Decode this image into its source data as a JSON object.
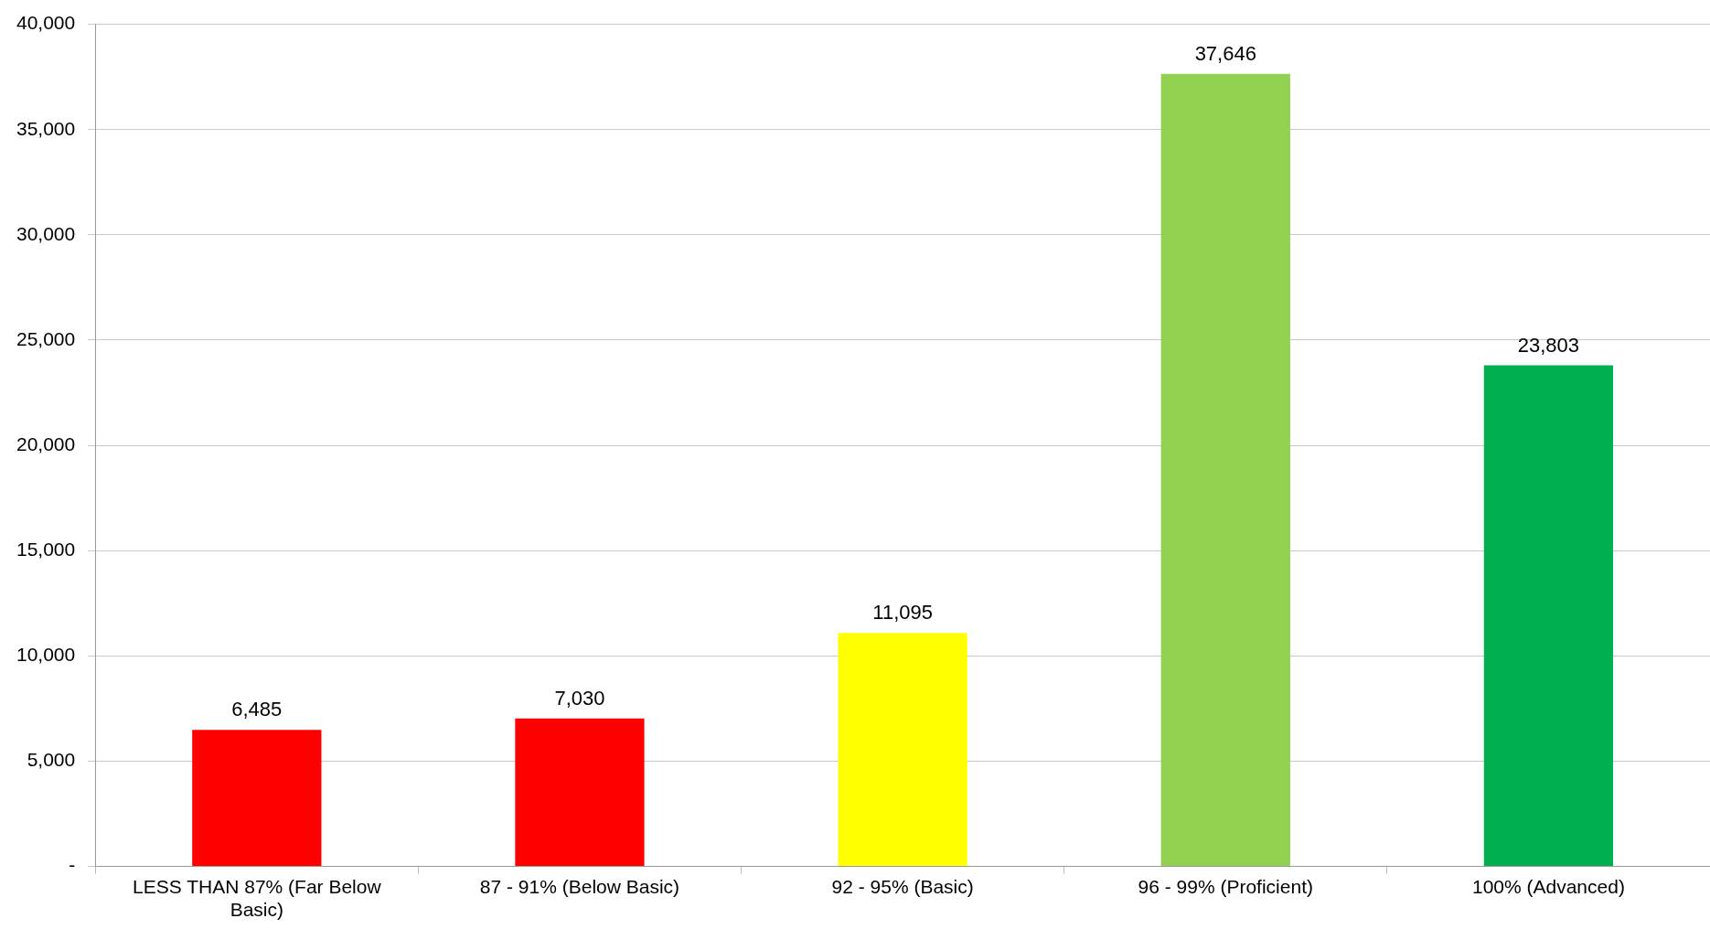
{
  "chart_data": {
    "type": "bar",
    "categories": [
      "LESS THAN 87% (Far Below Basic)",
      "87 - 91% (Below Basic)",
      "92 - 95% (Basic)",
      "96 - 99% (Proficient)",
      "100% (Advanced)"
    ],
    "values": [
      6485,
      7030,
      11095,
      37646,
      23803
    ],
    "colors": [
      "#ff0000",
      "#ff0000",
      "#ffff00",
      "#92d050",
      "#00b050"
    ],
    "ylim": [
      0,
      40000
    ],
    "yticks": [
      {
        "value": 0,
        "label": "-"
      },
      {
        "value": 5000,
        "label": "5,000"
      },
      {
        "value": 10000,
        "label": "10,000"
      },
      {
        "value": 15000,
        "label": "15,000"
      },
      {
        "value": 20000,
        "label": "20,000"
      },
      {
        "value": 25000,
        "label": "25,000"
      },
      {
        "value": 30000,
        "label": "30,000"
      },
      {
        "value": 35000,
        "label": "35,000"
      },
      {
        "value": 40000,
        "label": "40,000"
      }
    ],
    "value_labels": [
      "6,485",
      "7,030",
      "11,095",
      "37,646",
      "23,803"
    ],
    "grid": "y",
    "legend": false
  }
}
